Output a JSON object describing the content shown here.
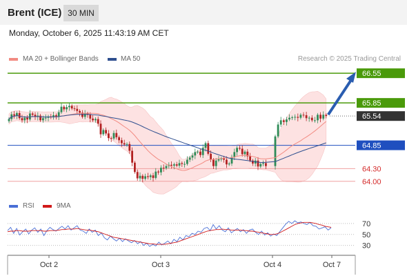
{
  "header": {
    "instrument": "Brent (ICE)",
    "timeframe": "30 MIN"
  },
  "timestamp": "Monday, October 6, 2025 11:43:19 AM CET",
  "legend": {
    "ma20_label": "MA 20 + Bollinger Bands",
    "ma50_label": "MA 50",
    "ma20_color": "#f28b82",
    "ma50_color": "#2f4f8f"
  },
  "credit": "Research © 2025 Trading Central",
  "rsi_legend": {
    "rsi_label": "RSI",
    "ma9_label": "9MA",
    "rsi_color": "#4a6fd6",
    "ma9_color": "#d11a1a"
  },
  "chart_data": {
    "type": "candlestick",
    "ylim": [
      63.85,
      66.65
    ],
    "last_price": 65.54,
    "x_tick_labels": [
      "Oct 2",
      "Oct 3",
      "Oct 4",
      "Oct 7"
    ],
    "resistance_levels": [
      66.55,
      65.85
    ],
    "support_levels": [
      64.85,
      64.3,
      64.0
    ],
    "level_labels": [
      "66.55",
      "65.85",
      "65.54",
      "64.85",
      "64.30",
      "64.00"
    ],
    "colors": {
      "resistance": "#4a9a0a",
      "pivot": "#1f4fbf",
      "support": "#f0a0a0",
      "last": "#333333",
      "arrow": "#2a5db0",
      "up": "#2e8b57",
      "down": "#b22222",
      "band": "#fde2e2"
    },
    "close": [
      65.47,
      65.58,
      65.55,
      65.61,
      65.49,
      65.44,
      65.5,
      65.46,
      65.6,
      65.57,
      65.52,
      65.55,
      65.44,
      65.49,
      65.5,
      65.53,
      65.51,
      65.56,
      65.53,
      65.63,
      65.76,
      65.7,
      65.75,
      65.78,
      65.72,
      65.71,
      65.66,
      65.62,
      65.52,
      65.6,
      65.57,
      65.48,
      65.44,
      65.47,
      65.36,
      65.11,
      65.21,
      65.13,
      65.02,
      65.01,
      65.14,
      65.04,
      64.97,
      64.9,
      64.87,
      64.88,
      64.72,
      64.44,
      64.22,
      64.07,
      64.13,
      64.06,
      64.12,
      64.1,
      64.14,
      64.08,
      64.23,
      64.21,
      64.32,
      64.31,
      64.36,
      64.39,
      64.37,
      64.4,
      64.37,
      64.43,
      64.41,
      64.41,
      64.51,
      64.56,
      64.61,
      64.69,
      64.7,
      64.62,
      64.79,
      64.9,
      64.65,
      64.51,
      64.36,
      64.49,
      64.52,
      64.54,
      64.51,
      64.4,
      64.42,
      64.57,
      64.69,
      64.79,
      64.77,
      64.64,
      64.7,
      64.59,
      64.49,
      64.42,
      64.49,
      64.35,
      64.41,
      64.43,
      64.36
    ],
    "gap_after_index": 99,
    "close_after_gap": [
      65.06,
      65.34,
      65.44,
      65.4,
      65.46,
      65.5,
      65.51,
      65.52,
      65.5,
      65.57,
      65.56,
      65.49,
      65.5,
      65.44,
      65.44,
      65.57,
      65.48,
      65.57,
      65.54
    ],
    "rsi": {
      "scale_labels": [
        "70",
        "50",
        "30"
      ],
      "ylim": [
        22,
        80
      ],
      "values": [
        57,
        63,
        52,
        61,
        49,
        55,
        60,
        51,
        58,
        62,
        54,
        60,
        48,
        57,
        63,
        59,
        56,
        61,
        65,
        60,
        66,
        58,
        62,
        66,
        58,
        56,
        52,
        60,
        54,
        58,
        48,
        53,
        44,
        40,
        47,
        42,
        38,
        43,
        37,
        42,
        38,
        35,
        39,
        33,
        37,
        30,
        34,
        28,
        32,
        29,
        36,
        31,
        34,
        38,
        33,
        41,
        37,
        45,
        40,
        48,
        46,
        52,
        50,
        56,
        54,
        61,
        63,
        57,
        68,
        60,
        66,
        58,
        55,
        62,
        53,
        57,
        61,
        55,
        59,
        52,
        58,
        60,
        54,
        50,
        56,
        49,
        53,
        47,
        51,
        48,
        55,
        62,
        69,
        74,
        70,
        75,
        71,
        73,
        70,
        68,
        72,
        66,
        65,
        60,
        62,
        64,
        58,
        62
      ],
      "ma9": [
        55,
        56,
        56,
        57,
        57,
        56,
        56,
        56,
        57,
        57,
        57,
        57,
        56,
        56,
        57,
        57,
        57,
        58,
        59,
        59,
        60,
        60,
        60,
        61,
        60,
        59,
        58,
        58,
        57,
        56,
        55,
        53,
        51,
        49,
        47,
        45,
        44,
        43,
        42,
        41,
        40,
        39,
        38,
        37,
        36,
        35,
        34,
        33,
        33,
        32,
        32,
        32,
        32,
        33,
        34,
        35,
        36,
        38,
        40,
        42,
        44,
        46,
        48,
        50,
        52,
        54,
        56,
        57,
        58,
        59,
        59,
        60,
        59,
        59,
        58,
        58,
        58,
        58,
        57,
        57,
        56,
        56,
        55,
        54,
        53,
        52,
        51,
        50,
        50,
        51,
        53,
        56,
        59,
        62,
        65,
        68,
        70,
        71,
        72,
        72,
        72,
        71,
        70,
        68,
        67,
        65,
        64,
        63
      ]
    }
  }
}
